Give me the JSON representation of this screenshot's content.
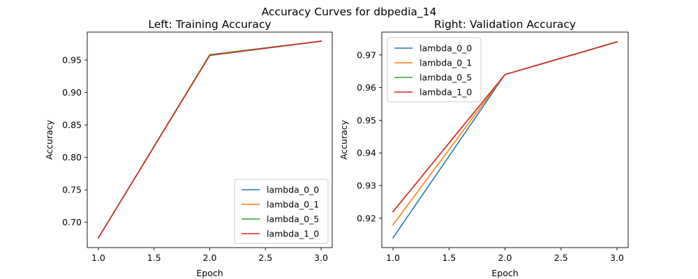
{
  "figure": {
    "suptitle": "Accuracy Curves for dbpedia_14"
  },
  "chart_data": [
    {
      "type": "line",
      "title": "Left: Training Accuracy",
      "xlabel": "Epoch",
      "ylabel": "Accuracy",
      "xlim": [
        0.9,
        3.1
      ],
      "ylim": [
        0.661,
        0.993
      ],
      "xticks": [
        1.0,
        1.5,
        2.0,
        2.5,
        3.0
      ],
      "xtick_labels": [
        "1.0",
        "1.5",
        "2.0",
        "2.5",
        "3.0"
      ],
      "yticks": [
        0.7,
        0.75,
        0.8,
        0.85,
        0.9,
        0.95
      ],
      "ytick_labels": [
        "0.70",
        "0.75",
        "0.80",
        "0.85",
        "0.90",
        "0.95"
      ],
      "grid": false,
      "legend": "lower-right",
      "x": [
        1,
        2,
        3
      ],
      "series": [
        {
          "name": "lambda_0_0",
          "color": "#1f77b4",
          "values": [
            0.676,
            0.958,
            0.979
          ]
        },
        {
          "name": "lambda_0_1",
          "color": "#ff7f0e",
          "values": [
            0.676,
            0.958,
            0.979
          ]
        },
        {
          "name": "lambda_0_5",
          "color": "#2ca02c",
          "values": [
            0.676,
            0.958,
            0.979
          ]
        },
        {
          "name": "lambda_1_0",
          "color": "#d62728",
          "values": [
            0.676,
            0.957,
            0.979
          ]
        }
      ]
    },
    {
      "type": "line",
      "title": "Right: Validation Accuracy",
      "xlabel": "Epoch",
      "ylabel": "Accuracy",
      "xlim": [
        0.9,
        3.1
      ],
      "ylim": [
        0.911,
        0.977
      ],
      "xticks": [
        1.0,
        1.5,
        2.0,
        2.5,
        3.0
      ],
      "xtick_labels": [
        "1.0",
        "1.5",
        "2.0",
        "2.5",
        "3.0"
      ],
      "yticks": [
        0.92,
        0.93,
        0.94,
        0.95,
        0.96,
        0.97
      ],
      "ytick_labels": [
        "0.92",
        "0.93",
        "0.94",
        "0.95",
        "0.96",
        "0.97"
      ],
      "grid": false,
      "legend": "upper-left",
      "x": [
        1,
        2,
        3
      ],
      "series": [
        {
          "name": "lambda_0_0",
          "color": "#1f77b4",
          "values": [
            0.914,
            0.964,
            0.974
          ]
        },
        {
          "name": "lambda_0_1",
          "color": "#ff7f0e",
          "values": [
            0.918,
            0.964,
            0.974
          ]
        },
        {
          "name": "lambda_0_5",
          "color": "#2ca02c",
          "values": [
            0.922,
            0.964,
            0.974
          ]
        },
        {
          "name": "lambda_1_0",
          "color": "#d62728",
          "values": [
            0.922,
            0.964,
            0.974
          ]
        }
      ]
    }
  ]
}
